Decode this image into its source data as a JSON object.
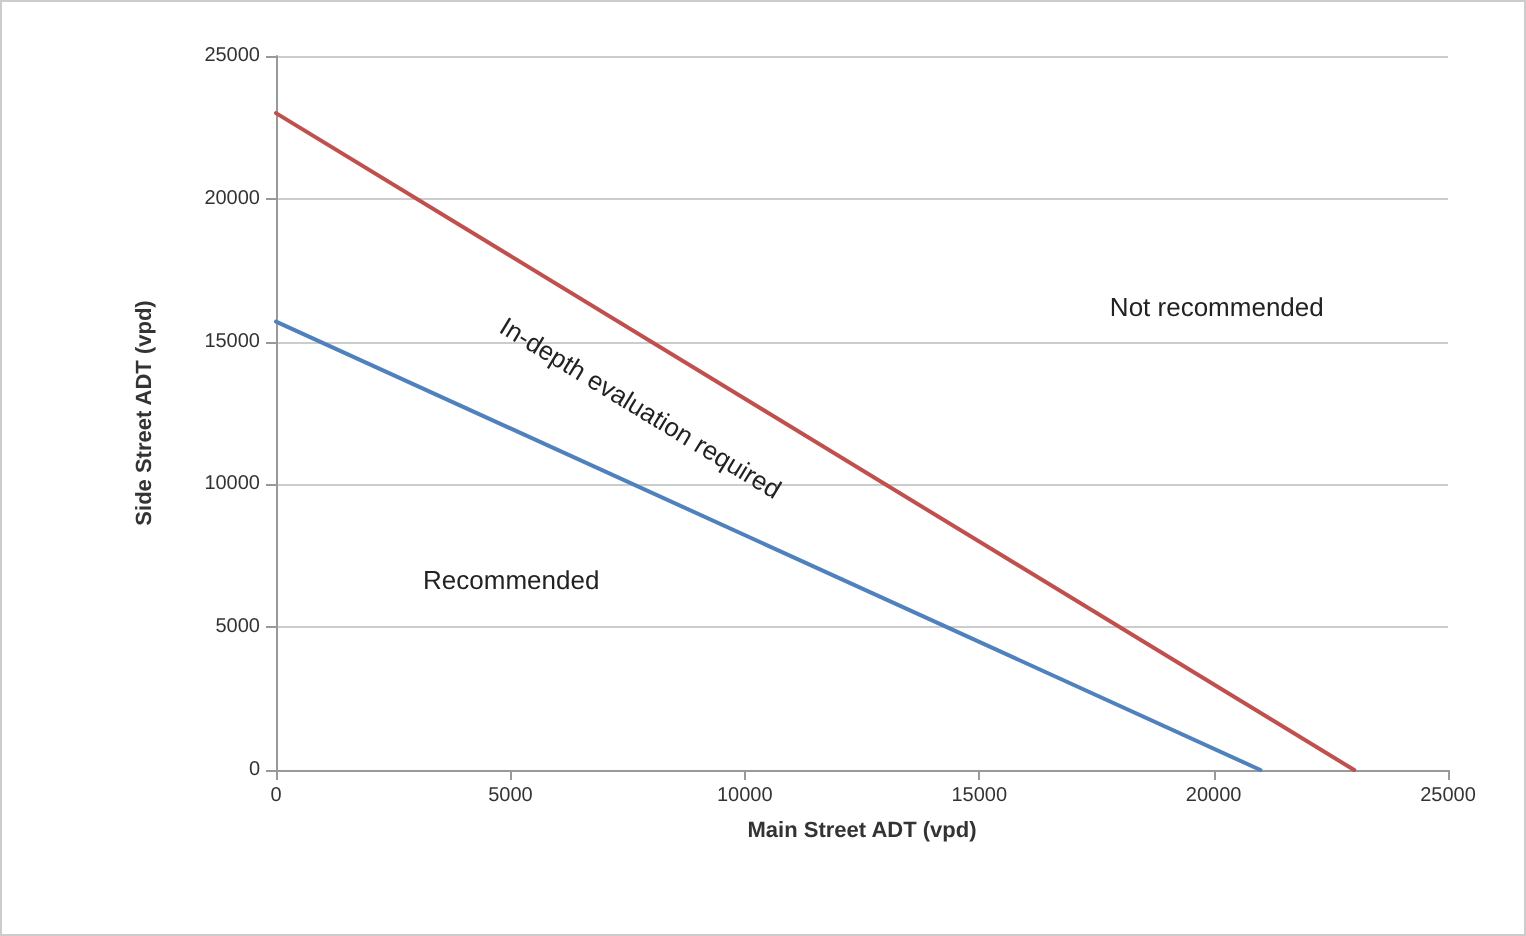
{
  "chart_data": {
    "type": "line",
    "xlabel": "Main Street ADT (vpd)",
    "ylabel": "Side Street ADT (vpd)",
    "series": [
      {
        "color": "#c0504d",
        "x": [
          0,
          23000
        ],
        "values": [
          23000,
          0
        ]
      },
      {
        "color": "#4f81bd",
        "x": [
          0,
          21000
        ],
        "values": [
          15700,
          0
        ]
      }
    ],
    "xlim": [
      0,
      25000
    ],
    "xticks": [
      0,
      5000,
      10000,
      15000,
      20000,
      25000
    ],
    "ylim": [
      0,
      25000
    ],
    "yticks": [
      0,
      5000,
      10000,
      15000,
      20000,
      25000
    ],
    "grid": "y",
    "marker": "none",
    "line_style": "solid",
    "annotations": [
      "Not recommended",
      "In-depth evaluation required",
      "Recommended"
    ]
  }
}
